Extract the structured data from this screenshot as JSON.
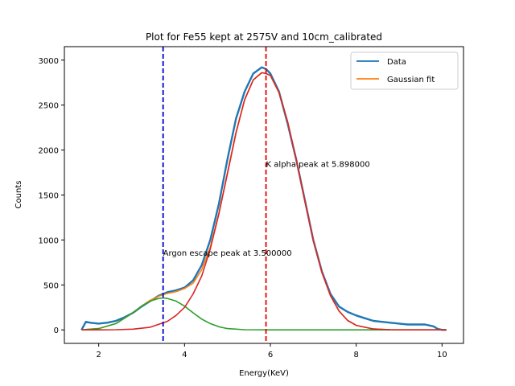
{
  "chart_data": {
    "type": "line",
    "title": "Plot for Fe55 kept at 2575V and 10cm_calibrated",
    "xlabel": "Energy(KeV)",
    "ylabel": "Counts",
    "xlim": [
      1.2,
      10.5
    ],
    "ylim": [
      -150,
      3150
    ],
    "xticks": [
      2,
      4,
      6,
      8,
      10
    ],
    "yticks": [
      0,
      500,
      1000,
      1500,
      2000,
      2500,
      3000
    ],
    "grid": false,
    "legend_position": "top-right",
    "series": [
      {
        "name": "Data",
        "color": "#1f77b4",
        "x": [
          1.6,
          1.7,
          1.8,
          2.0,
          2.2,
          2.4,
          2.6,
          2.8,
          3.0,
          3.2,
          3.4,
          3.6,
          3.8,
          4.0,
          4.2,
          4.4,
          4.6,
          4.8,
          5.0,
          5.2,
          5.4,
          5.6,
          5.8,
          5.9,
          6.0,
          6.2,
          6.4,
          6.6,
          6.8,
          7.0,
          7.2,
          7.4,
          7.6,
          7.8,
          8.0,
          8.2,
          8.4,
          8.6,
          8.8,
          9.0,
          9.2,
          9.4,
          9.6,
          9.8,
          9.9,
          10.0,
          10.1
        ],
        "y": [
          0,
          90,
          80,
          70,
          80,
          100,
          140,
          190,
          260,
          320,
          380,
          420,
          440,
          470,
          550,
          720,
          1000,
          1400,
          1900,
          2350,
          2650,
          2850,
          2920,
          2900,
          2850,
          2650,
          2300,
          1900,
          1450,
          1000,
          650,
          400,
          260,
          200,
          160,
          130,
          100,
          90,
          80,
          70,
          60,
          60,
          60,
          40,
          10,
          0,
          0
        ]
      },
      {
        "name": "Gaussian fit",
        "color": "#ff7f0e",
        "x": [
          1.6,
          2.0,
          2.4,
          2.8,
          3.0,
          3.2,
          3.4,
          3.6,
          3.8,
          4.0,
          4.2,
          4.4,
          4.6,
          4.8,
          5.0,
          5.2,
          5.4,
          5.6,
          5.8,
          5.9,
          6.0,
          6.2,
          6.4,
          6.6,
          6.8,
          7.0,
          7.2,
          7.4,
          7.6,
          7.8,
          8.0,
          8.4,
          8.8,
          9.2,
          9.6,
          10.1
        ],
        "y": [
          0,
          15,
          70,
          190,
          265,
          330,
          375,
          405,
          425,
          460,
          520,
          670,
          920,
          1300,
          1750,
          2200,
          2560,
          2780,
          2860,
          2850,
          2830,
          2640,
          2320,
          1900,
          1440,
          1000,
          640,
          380,
          210,
          105,
          50,
          10,
          2,
          0,
          0,
          0
        ]
      },
      {
        "color": "#2ca02c",
        "x": [
          1.6,
          2.0,
          2.4,
          2.8,
          3.0,
          3.2,
          3.4,
          3.5,
          3.6,
          3.8,
          4.0,
          4.2,
          4.4,
          4.6,
          4.8,
          5.0,
          5.4,
          6.0,
          7.0,
          8.0,
          9.0,
          10.1
        ],
        "y": [
          0,
          15,
          70,
          190,
          265,
          320,
          350,
          355,
          350,
          320,
          265,
          190,
          120,
          70,
          35,
          15,
          2,
          0,
          0,
          0,
          0,
          0
        ]
      },
      {
        "color": "#d62728",
        "x": [
          1.6,
          2.0,
          2.4,
          2.8,
          3.2,
          3.6,
          3.8,
          4.0,
          4.2,
          4.4,
          4.6,
          4.8,
          5.0,
          5.2,
          5.4,
          5.6,
          5.8,
          5.9,
          6.0,
          6.2,
          6.4,
          6.6,
          6.8,
          7.0,
          7.2,
          7.4,
          7.6,
          7.8,
          8.0,
          8.4,
          8.8,
          9.2,
          9.6,
          10.1
        ],
        "y": [
          0,
          0,
          2,
          8,
          30,
          95,
          160,
          250,
          400,
          600,
          900,
          1290,
          1740,
          2190,
          2560,
          2780,
          2860,
          2850,
          2830,
          2640,
          2320,
          1900,
          1440,
          1000,
          640,
          380,
          210,
          105,
          50,
          10,
          2,
          0,
          0,
          0
        ]
      }
    ],
    "vlines": [
      {
        "x": 3.5,
        "color": "#0000cc",
        "style": "dashed"
      },
      {
        "x": 5.898,
        "color": "#e60000",
        "style": "dashed"
      }
    ],
    "annotations": [
      {
        "text": "K alpha peak at 5.898000",
        "x": 5.898,
        "y": 1850
      },
      {
        "text": "Argon escape peak at 3.500000",
        "x": 3.5,
        "y": 860
      }
    ]
  }
}
